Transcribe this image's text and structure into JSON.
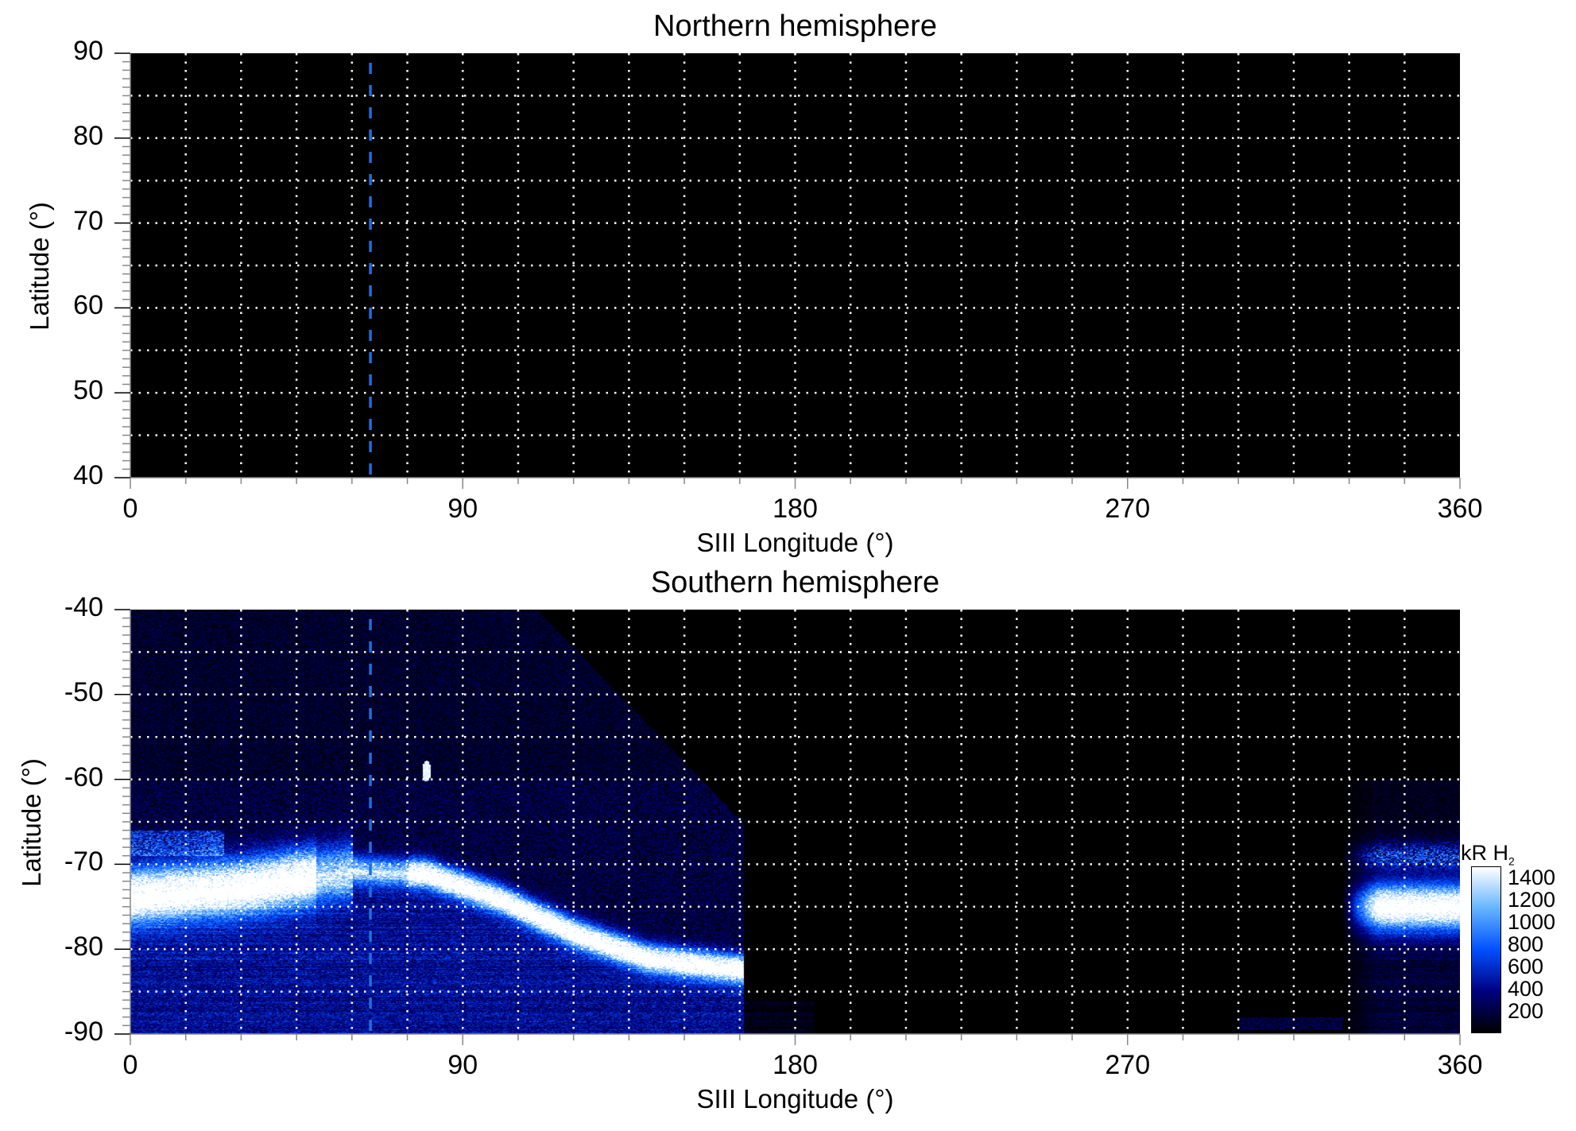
{
  "chart_data": [
    {
      "type": "heatmap",
      "title": "Northern hemisphere",
      "xlabel": "SIII Longitude (°)",
      "ylabel": "Latitude (°)",
      "xlim": [
        0,
        360
      ],
      "ylim": [
        40,
        90
      ],
      "xticks": [
        "0",
        "90",
        "180",
        "270",
        "360"
      ],
      "yticks": [
        "40",
        "50",
        "60",
        "70",
        "80",
        "90"
      ],
      "grid": {
        "on": true,
        "style": "dotted",
        "color": "#ffffff",
        "x_step": 15,
        "y_step": 5
      },
      "reference_line": {
        "longitude": 65,
        "style": "dashed",
        "color": "#1f6fdc"
      },
      "emission": "none"
    },
    {
      "type": "heatmap",
      "title": "Southern hemisphere",
      "xlabel": "SIII Longitude (°)",
      "ylabel": "Latitude (°)",
      "xlim": [
        0,
        360
      ],
      "ylim": [
        -90,
        -40
      ],
      "xticks": [
        "0",
        "90",
        "180",
        "270",
        "360"
      ],
      "yticks": [
        "-40",
        "-50",
        "-60",
        "-70",
        "-80",
        "-90"
      ],
      "grid": {
        "on": true,
        "style": "dotted",
        "color": "#ffffff",
        "x_step": 15,
        "y_step": 5
      },
      "reference_line": {
        "longitude": 65,
        "style": "dashed",
        "color": "#1f6fdc"
      },
      "colorbar": {
        "unit": "kR H",
        "unit_subscript": "2",
        "ticks": [
          "200",
          "400",
          "600",
          "800",
          "1000",
          "1200",
          "1400"
        ],
        "range": [
          0,
          1500
        ],
        "colormap": [
          "#000000",
          "#000080",
          "#0050ff",
          "#64b4ff",
          "#ffffff"
        ],
        "placement": "right"
      }
    }
  ]
}
